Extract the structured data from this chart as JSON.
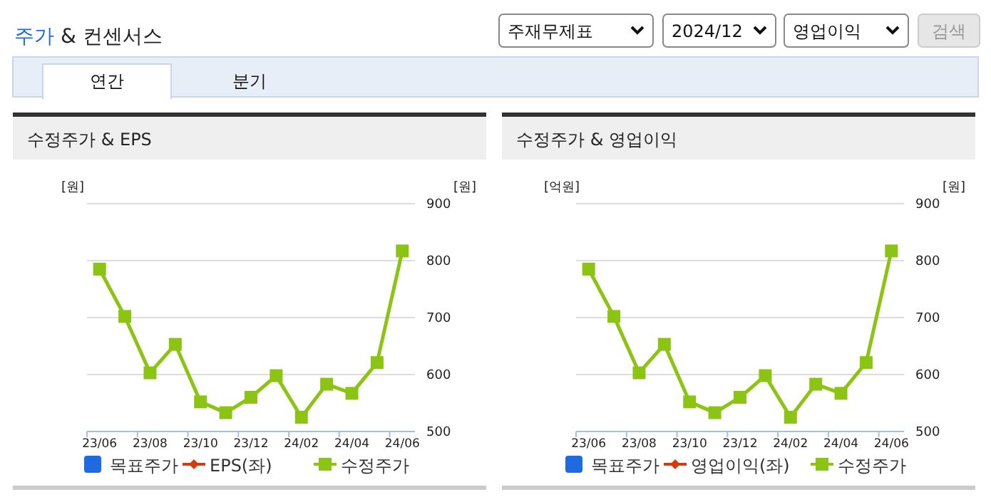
{
  "chart_data": [
    {
      "type": "other",
      "title": "주가 & 컨센서스",
      "annotations": [
        "주재무제표",
        "2024/12",
        "영업이익",
        "검색",
        "연간",
        "분기"
      ]
    },
    {
      "type": "line",
      "title": "수정주가 & EPS",
      "ylabel": "[원]",
      "y2label": "[원]",
      "categories": [
        "23/06",
        null,
        "23/08",
        null,
        "23/10",
        null,
        "23/12",
        null,
        "24/02",
        null,
        "24/04",
        null,
        "24/06"
      ],
      "y2lim": [
        500,
        900
      ],
      "y2ticks": [
        500,
        600,
        700,
        800,
        900
      ],
      "grid": "y",
      "legend": "bottom",
      "marker": "square",
      "series": [
        {
          "name": "목표주가",
          "type": "bar",
          "color": "#1e6ae0",
          "values": [
            null,
            null,
            null,
            null,
            null,
            null,
            null,
            null,
            null,
            null,
            null,
            null,
            null
          ]
        },
        {
          "name": "EPS(좌)",
          "type": "line",
          "color": "#d63a0e",
          "values": [
            null,
            null,
            null,
            null,
            null,
            null,
            null,
            null,
            null,
            null,
            null,
            null,
            null
          ]
        },
        {
          "name": "수정주가",
          "type": "line",
          "axis": "y2",
          "color": "#8cc414",
          "values": [
            785,
            702,
            603,
            653,
            552,
            533,
            560,
            598,
            525,
            583,
            567,
            621,
            817
          ]
        }
      ]
    },
    {
      "type": "line",
      "title": "수정주가 & 영업이익",
      "ylabel": "[억원]",
      "y2label": "[원]",
      "categories": [
        "23/06",
        null,
        "23/08",
        null,
        "23/10",
        null,
        "23/12",
        null,
        "24/02",
        null,
        "24/04",
        null,
        "24/06"
      ],
      "y2lim": [
        500,
        900
      ],
      "y2ticks": [
        500,
        600,
        700,
        800,
        900
      ],
      "grid": "y",
      "legend": "bottom",
      "marker": "square",
      "series": [
        {
          "name": "목표주가",
          "type": "bar",
          "color": "#1e6ae0",
          "values": [
            null,
            null,
            null,
            null,
            null,
            null,
            null,
            null,
            null,
            null,
            null,
            null,
            null
          ]
        },
        {
          "name": "영업이익(좌)",
          "type": "line",
          "color": "#d63a0e",
          "values": [
            null,
            null,
            null,
            null,
            null,
            null,
            null,
            null,
            null,
            null,
            null,
            null,
            null
          ]
        },
        {
          "name": "수정주가",
          "type": "line",
          "axis": "y2",
          "color": "#8cc414",
          "values": [
            785,
            702,
            603,
            653,
            552,
            533,
            560,
            598,
            525,
            583,
            567,
            621,
            817
          ]
        }
      ]
    }
  ]
}
